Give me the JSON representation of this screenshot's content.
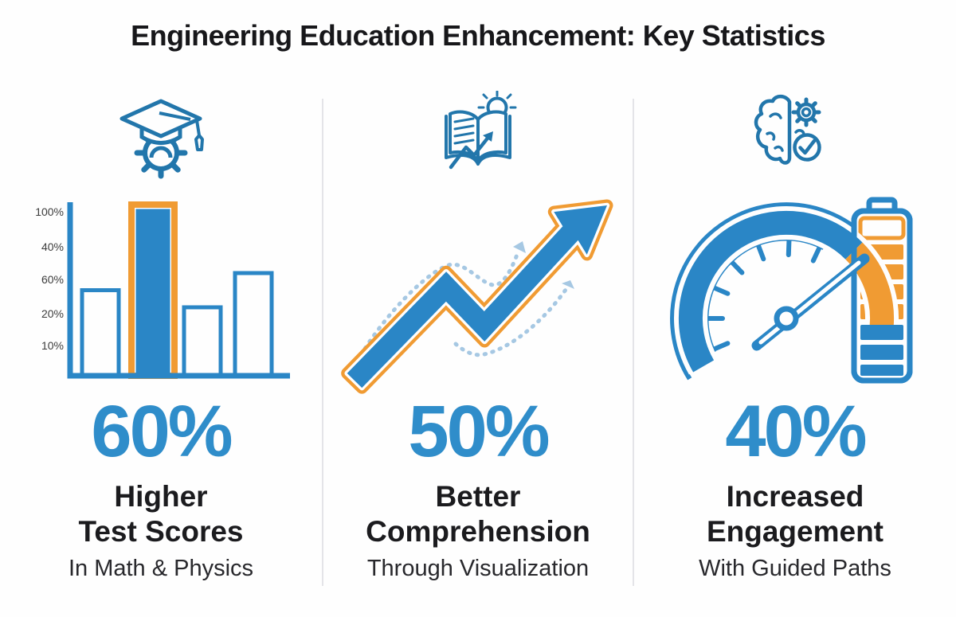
{
  "title": "Engineering Education Enhancement: Key Statistics",
  "palette": {
    "primary_blue": "#2a86c6",
    "stat_blue": "#2f8dca",
    "accent_orange": "#f09b33",
    "dotted_light_blue": "#a6c8e3",
    "icon_blue": "#2276ab",
    "heading_dark": "#1b1b1e"
  },
  "columns": [
    {
      "icon": "graduation-cap-gear-icon",
      "stat": "60%",
      "label_line1": "Higher",
      "label_line2": "Test Scores",
      "sublabel": "In Math & Physics"
    },
    {
      "icon": "book-lightbulb-trend-icon",
      "stat": "50%",
      "label_line1": "Better",
      "label_line2": "Comprehension",
      "sublabel": "Through Visualization"
    },
    {
      "icon": "brain-gear-check-icon",
      "stat": "40%",
      "label_line1": "Increased",
      "label_line2": "Engagement",
      "sublabel": "With Guided Paths"
    }
  ],
  "chart_data": [
    {
      "panel": "higher-test-scores",
      "type": "bar",
      "headline_stat": "60%",
      "y_tick_labels": [
        "100%",
        "40%",
        "60%",
        "20%",
        "10%"
      ],
      "bars": [
        {
          "value_pct": 50,
          "style": "outlined"
        },
        {
          "value_pct": 100,
          "style": "filled-highlighted"
        },
        {
          "value_pct": 40,
          "style": "outlined"
        },
        {
          "value_pct": 60,
          "style": "outlined"
        }
      ],
      "note": "decorative infographic bar chart; tallest bar filled blue with orange outline, others blue-outlined hollow"
    },
    {
      "panel": "better-comprehension",
      "type": "pictorial",
      "headline_stat": "50%",
      "description": "thick zigzag arrow rising to upper right, blue fill with orange outline, flanked by two dotted light-blue guide arrows"
    },
    {
      "panel": "increased-engagement",
      "type": "pictorial",
      "headline_stat": "40%",
      "description": "speedometer gauge, needle pointing into orange high zone that sweeps into a battery with orange and blue charge cells"
    }
  ]
}
